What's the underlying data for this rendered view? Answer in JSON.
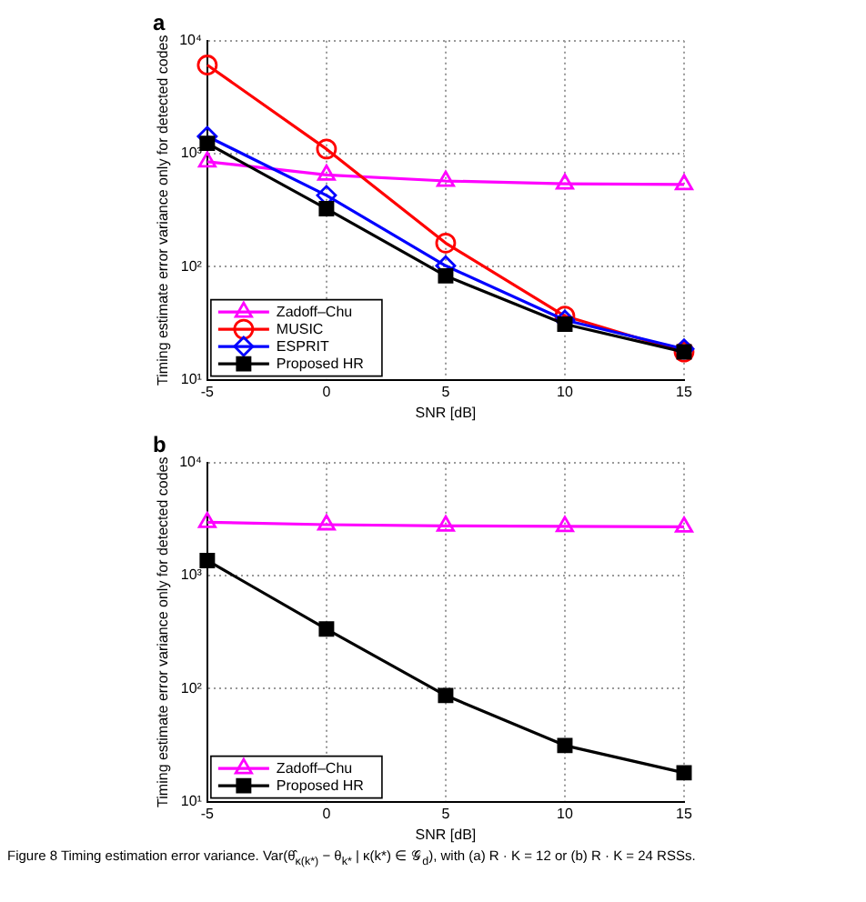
{
  "chart_data": [
    {
      "type": "line",
      "title": "a",
      "xlabel": "SNR [dB]",
      "ylabel": "Timing estimate error variance only for detected codes",
      "x": [
        -5,
        0,
        5,
        10,
        15
      ],
      "series": [
        {
          "name": "Zadoff–Chu",
          "color": "#ff00ff",
          "marker": "triangle",
          "values": [
            850,
            650,
            574,
            541,
            535
          ]
        },
        {
          "name": "MUSIC",
          "color": "#ff0000",
          "marker": "circle",
          "values": [
            6100,
            1100,
            162,
            36.6,
            17.6
          ]
        },
        {
          "name": "ESPRIT",
          "color": "#0000ff",
          "marker": "diamond",
          "values": [
            1425,
            428,
            102,
            33.7,
            18.7
          ]
        },
        {
          "name": "Proposed HR",
          "color": "#000000",
          "marker": "square",
          "values": [
            1236,
            326,
            83,
            31,
            17.6
          ]
        }
      ],
      "xlim": [
        -5,
        15
      ],
      "xticks": [
        -5,
        0,
        5,
        10,
        15
      ],
      "ylim": [
        10,
        10000
      ],
      "yticks": [
        {
          "value": 10,
          "label": "10¹"
        },
        {
          "value": 100,
          "label": "10²"
        },
        {
          "value": 1000,
          "label": "10³"
        },
        {
          "value": 10000,
          "label": "10⁴"
        }
      ],
      "log": "y",
      "grid": true,
      "legend": "bottom left",
      "line_style": "solid"
    },
    {
      "type": "line",
      "title": "b",
      "xlabel": "SNR [dB]",
      "ylabel": "Timing estimate error variance only for detected codes",
      "x": [
        -5,
        0,
        5,
        10,
        15
      ],
      "series": [
        {
          "name": "Zadoff–Chu",
          "color": "#ff00ff",
          "marker": "triangle",
          "values": [
            2965,
            2825,
            2760,
            2730,
            2700
          ]
        },
        {
          "name": "Proposed HR",
          "color": "#000000",
          "marker": "square",
          "values": [
            1360,
            337,
            87,
            31.4,
            18
          ]
        }
      ],
      "xlim": [
        -5,
        15
      ],
      "xticks": [
        -5,
        0,
        5,
        10,
        15
      ],
      "ylim": [
        10,
        10000
      ],
      "yticks": [
        {
          "value": 10,
          "label": "10¹"
        },
        {
          "value": 100,
          "label": "10²"
        },
        {
          "value": 1000,
          "label": "10³"
        },
        {
          "value": 10000,
          "label": "10⁴"
        }
      ],
      "log": "y",
      "grid": true,
      "legend": "bottom left",
      "line_style": "solid",
      "annotations": [
        "Figure 8 Timing estimation error variance. Var(θ̂$_{κ(k*)}$ − θ$_{k*}$ | κ(k*) ∈ 𝒢$_{d}$), with (a) R · K = 12 or (b) R · K = 24 RSSs."
      ]
    }
  ]
}
